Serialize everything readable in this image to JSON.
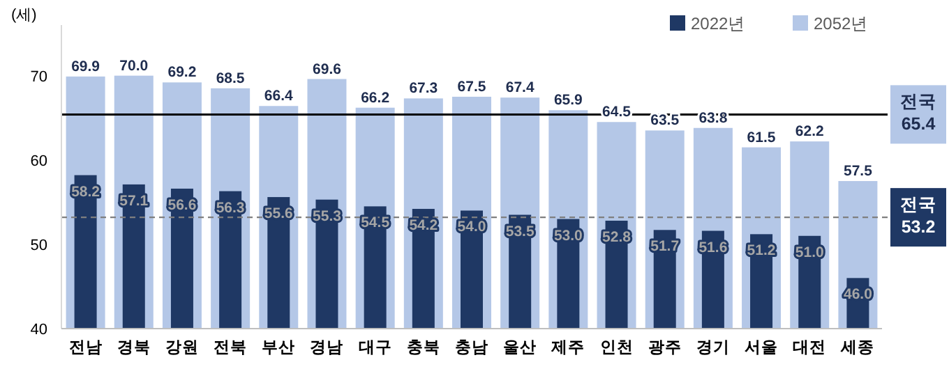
{
  "chart_data": {
    "type": "bar",
    "ylabel": "(세)",
    "categories": [
      "전남",
      "경북",
      "강원",
      "전북",
      "부산",
      "경남",
      "대구",
      "충북",
      "충남",
      "울산",
      "제주",
      "인천",
      "광주",
      "경기",
      "서울",
      "대전",
      "세종"
    ],
    "series": [
      {
        "name": "2052년",
        "color": "#b4c7e7",
        "values": [
          69.9,
          70.0,
          69.2,
          68.5,
          66.4,
          69.6,
          66.2,
          67.3,
          67.5,
          67.4,
          65.9,
          64.5,
          63.5,
          63.8,
          61.5,
          62.2,
          57.5
        ],
        "value_labels": [
          "69.9",
          "70.0",
          "69.2",
          "68.5",
          "66.4",
          "69.6",
          "66.2",
          "67.3",
          "67.5",
          "67.4",
          "65.9",
          "64.5",
          "63.5",
          "63.8",
          "61.5",
          "62.2",
          "57.5"
        ]
      },
      {
        "name": "2022년",
        "color": "#1f3864",
        "values": [
          58.2,
          57.1,
          56.6,
          56.3,
          55.6,
          55.3,
          54.5,
          54.2,
          54.0,
          53.5,
          53.0,
          52.8,
          51.7,
          51.6,
          51.2,
          51.0,
          46.0
        ],
        "value_labels": [
          "58.2",
          "57.1",
          "56.6",
          "56.3",
          "55.6",
          "55.3",
          "54.5",
          "54.2",
          "54.0",
          "53.5",
          "53.0",
          "52.8",
          "51.7",
          "51.6",
          "51.2",
          "51.0",
          "46.0"
        ]
      }
    ],
    "ylim": [
      40,
      76
    ],
    "yticks": [
      40,
      50,
      60,
      70
    ],
    "legend": "top right",
    "grid": false,
    "ref_lines": [
      {
        "axis": "y",
        "value": 65.4,
        "label": "전국\n65.4",
        "color": "#000000",
        "line_style": "solid"
      },
      {
        "axis": "y",
        "value": 53.2,
        "label": "전국\n53.2",
        "color": "#7f7f7f",
        "line_style": "dashed"
      }
    ]
  }
}
